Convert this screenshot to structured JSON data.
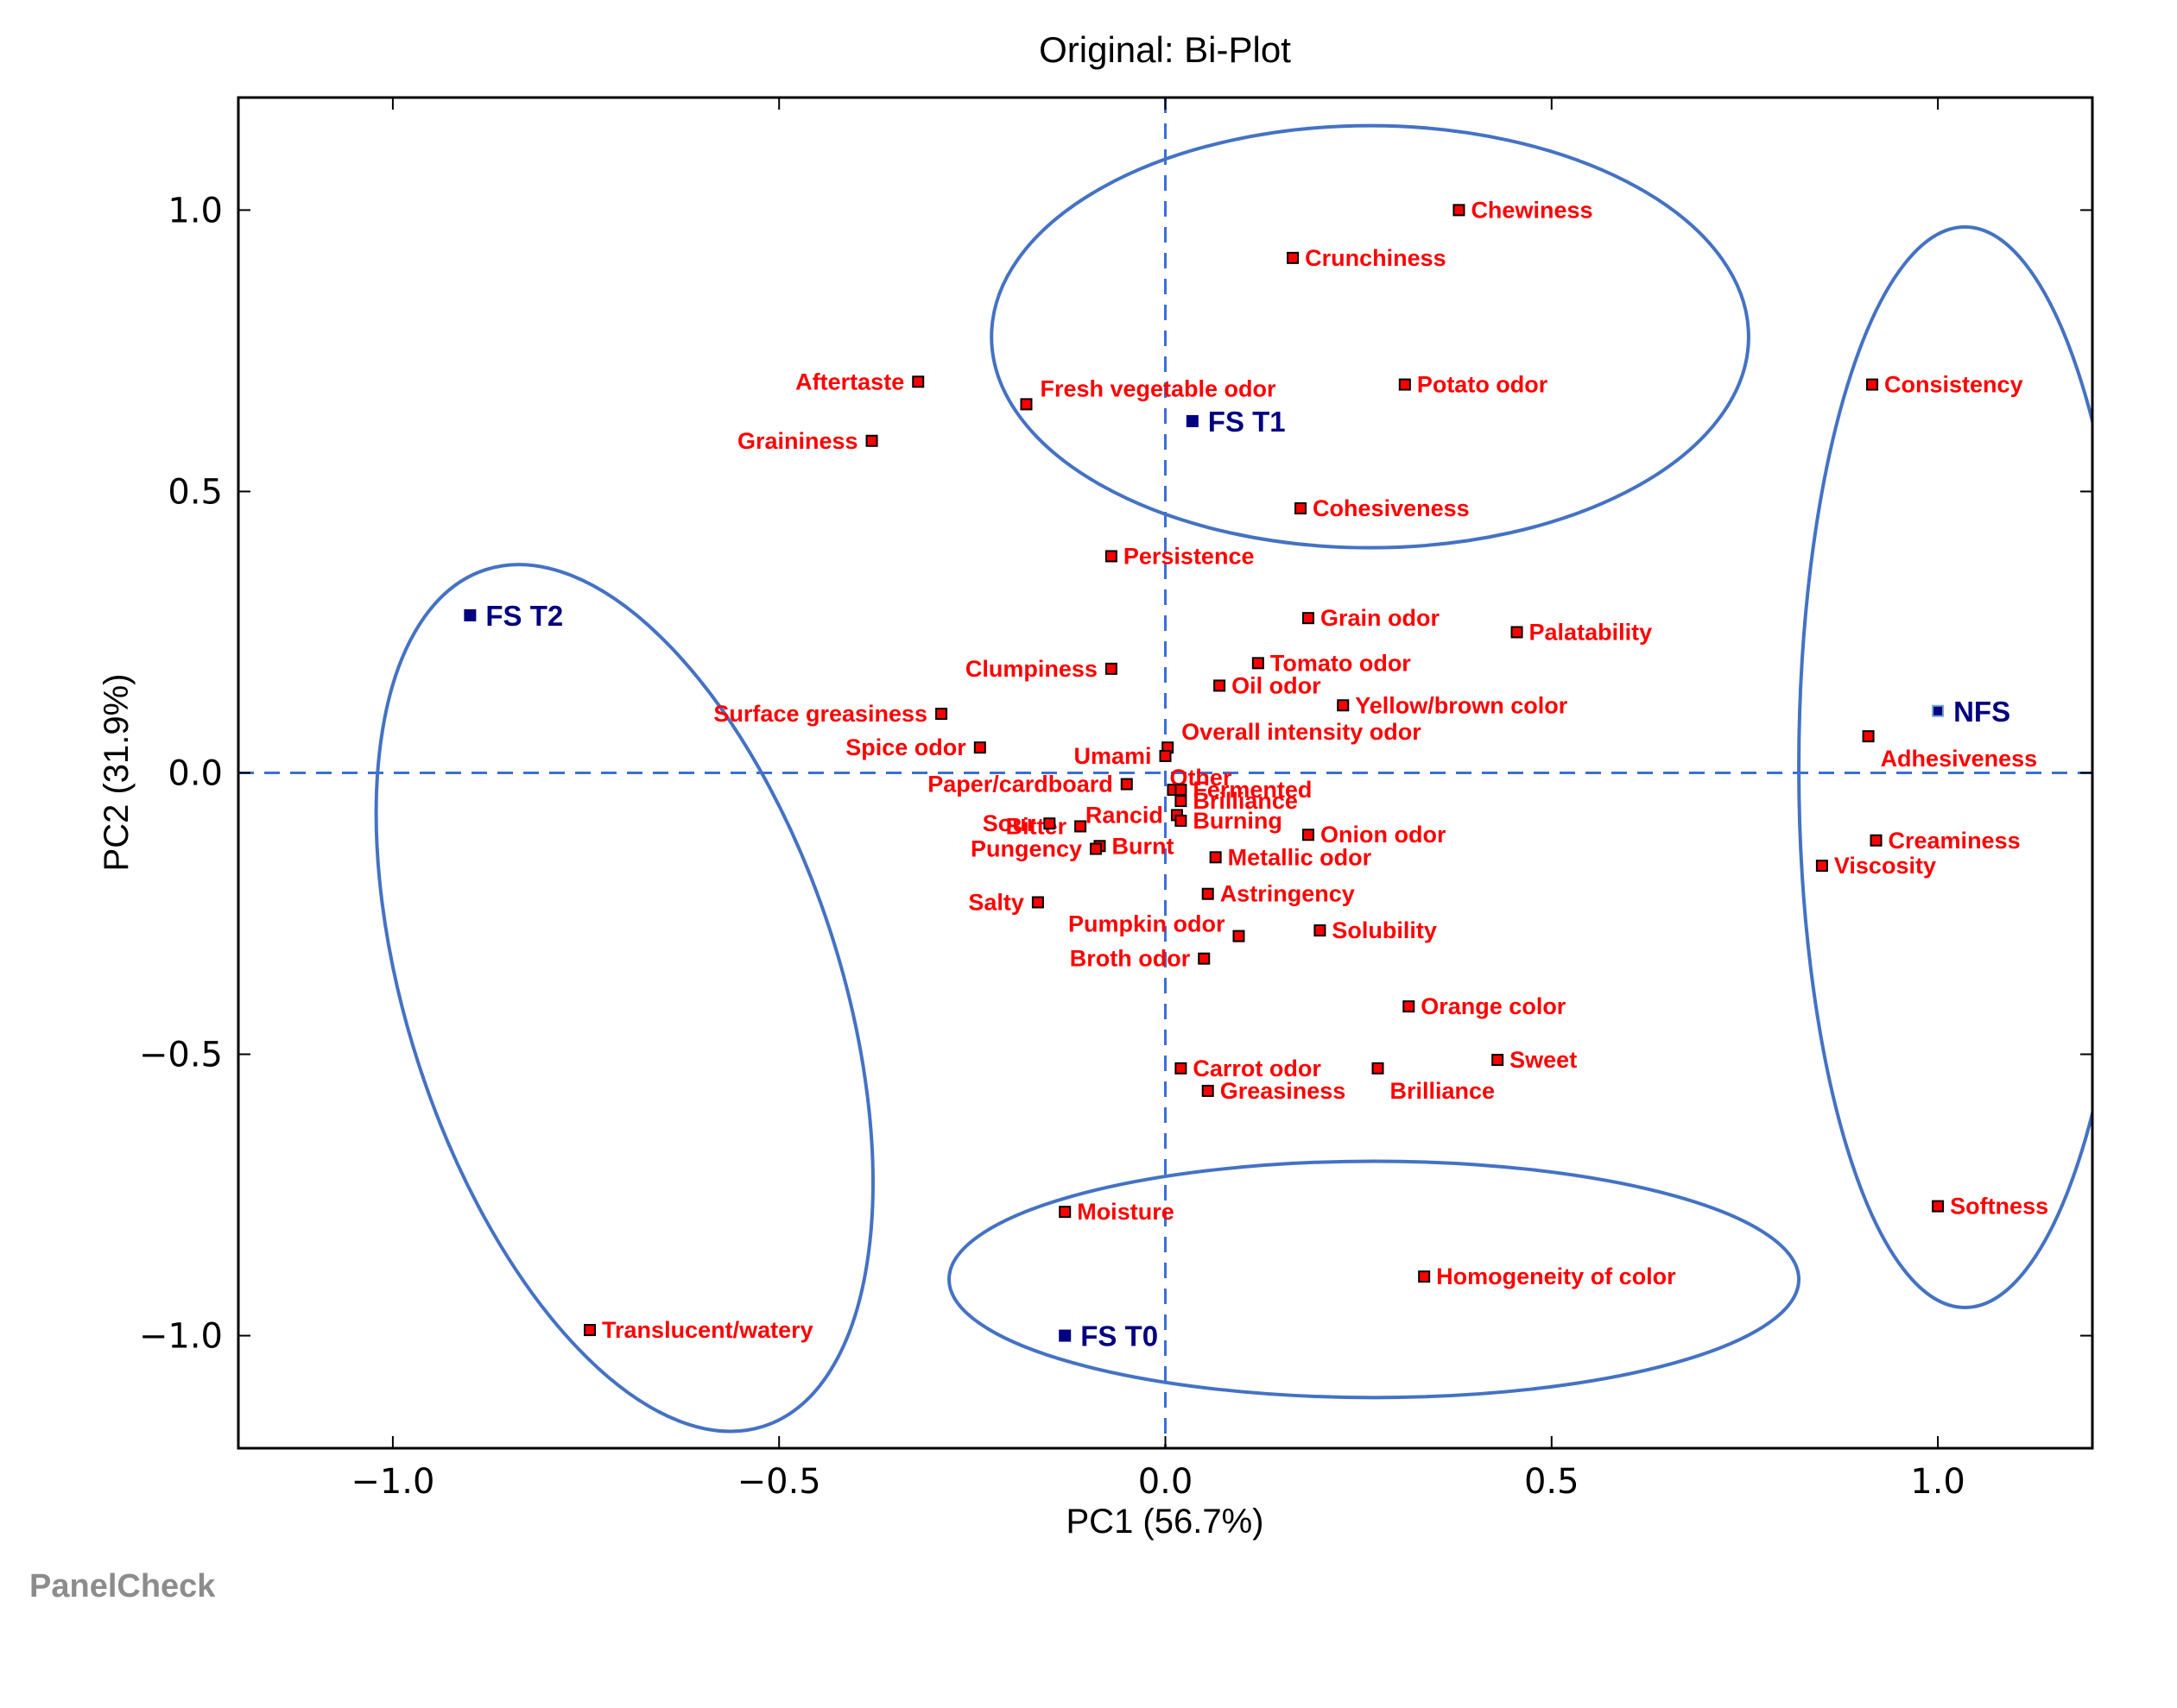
{
  "chart_data": {
    "type": "scatter",
    "title": "Original: Bi-Plot",
    "xlabel": "PC1 (56.7%)",
    "ylabel": "PC2 (31.9%)",
    "xlim": [
      -1.2,
      1.2
    ],
    "ylim": [
      -1.2,
      1.2
    ],
    "xticks": [
      -1.0,
      -0.5,
      0.0,
      0.5,
      1.0
    ],
    "xtick_labels": [
      "−1.0",
      "−0.5",
      "0.0",
      "0.5",
      "1.0"
    ],
    "yticks": [
      1.0,
      0.5,
      0.0,
      -0.5,
      -1.0
    ],
    "ytick_labels": [
      "1.0",
      "0.5",
      "0.0",
      "−0.5",
      "−1.0"
    ],
    "grid": false,
    "reference_lines": {
      "x": 0,
      "y": 0,
      "style": "dashed",
      "color": "#3a6fd6"
    },
    "attribute_color": "#ff0000",
    "sample_color": "#000080",
    "attributes": [
      {
        "label": "Chewiness",
        "x": 0.38,
        "y": 1.0,
        "align": "right"
      },
      {
        "label": "Crunchiness",
        "x": 0.165,
        "y": 0.915,
        "align": "right"
      },
      {
        "label": "Potato odor",
        "x": 0.31,
        "y": 0.69,
        "align": "right"
      },
      {
        "label": "Fresh vegetable odor",
        "x": -0.18,
        "y": 0.655,
        "align": "right-up"
      },
      {
        "label": "Aftertaste",
        "x": -0.32,
        "y": 0.695,
        "align": "left"
      },
      {
        "label": "Graininess",
        "x": -0.38,
        "y": 0.59,
        "align": "left"
      },
      {
        "label": "Cohesiveness",
        "x": 0.175,
        "y": 0.47,
        "align": "right"
      },
      {
        "label": "Persistence",
        "x": -0.07,
        "y": 0.385,
        "align": "right"
      },
      {
        "label": "Grain odor",
        "x": 0.185,
        "y": 0.275,
        "align": "right"
      },
      {
        "label": "Palatability",
        "x": 0.455,
        "y": 0.25,
        "align": "right"
      },
      {
        "label": "Tomato odor",
        "x": 0.12,
        "y": 0.195,
        "align": "right"
      },
      {
        "label": "Clumpiness",
        "x": -0.07,
        "y": 0.185,
        "align": "left"
      },
      {
        "label": "Oil odor",
        "x": 0.07,
        "y": 0.155,
        "align": "right"
      },
      {
        "label": "Yellow/brown color",
        "x": 0.23,
        "y": 0.12,
        "align": "right"
      },
      {
        "label": "Surface greasiness",
        "x": -0.29,
        "y": 0.105,
        "align": "left"
      },
      {
        "label": "Overall intensity odor",
        "x": 0.003,
        "y": 0.045,
        "align": "right-up"
      },
      {
        "label": "Spice odor",
        "x": -0.24,
        "y": 0.045,
        "align": "left"
      },
      {
        "label": "Umami",
        "x": 0.0,
        "y": 0.03,
        "align": "left"
      },
      {
        "label": "Other",
        "x": 0.01,
        "y": -0.03,
        "align": "up"
      },
      {
        "label": "Paper/cardboard",
        "x": -0.05,
        "y": -0.02,
        "align": "left"
      },
      {
        "label": "Fermented",
        "x": 0.02,
        "y": -0.03,
        "align": "right"
      },
      {
        "label": "Brilliance",
        "x": 0.02,
        "y": -0.05,
        "align": "right"
      },
      {
        "label": "Rancid",
        "x": 0.015,
        "y": -0.075,
        "align": "left"
      },
      {
        "label": "Bitter",
        "x": -0.11,
        "y": -0.095,
        "align": "left"
      },
      {
        "label": "Sour",
        "x": -0.15,
        "y": -0.09,
        "align": "left"
      },
      {
        "label": "Burning",
        "x": 0.02,
        "y": -0.085,
        "align": "right"
      },
      {
        "label": "Onion odor",
        "x": 0.185,
        "y": -0.11,
        "align": "right"
      },
      {
        "label": "Burnt",
        "x": -0.085,
        "y": -0.13,
        "align": "right"
      },
      {
        "label": "Pungency",
        "x": -0.09,
        "y": -0.135,
        "align": "left"
      },
      {
        "label": "Metallic odor",
        "x": 0.065,
        "y": -0.15,
        "align": "right"
      },
      {
        "label": "Astringency",
        "x": 0.055,
        "y": -0.215,
        "align": "right"
      },
      {
        "label": "Salty",
        "x": -0.165,
        "y": -0.23,
        "align": "left"
      },
      {
        "label": "Solubility",
        "x": 0.2,
        "y": -0.28,
        "align": "right"
      },
      {
        "label": "Pumpkin odor",
        "x": 0.095,
        "y": -0.29,
        "align": "left-up"
      },
      {
        "label": "Broth odor",
        "x": 0.05,
        "y": -0.33,
        "align": "left"
      },
      {
        "label": "Orange color",
        "x": 0.315,
        "y": -0.415,
        "align": "right"
      },
      {
        "label": "Sweet",
        "x": 0.43,
        "y": -0.51,
        "align": "right"
      },
      {
        "label": "Carrot odor",
        "x": 0.02,
        "y": -0.525,
        "align": "right"
      },
      {
        "label": "Brilliance",
        "x": 0.275,
        "y": -0.525,
        "align": "right-down"
      },
      {
        "label": "Greasiness",
        "x": 0.055,
        "y": -0.565,
        "align": "right"
      },
      {
        "label": "Moisture",
        "x": -0.13,
        "y": -0.78,
        "align": "right"
      },
      {
        "label": "Homogeneity of color",
        "x": 0.335,
        "y": -0.895,
        "align": "right"
      },
      {
        "label": "Translucent/watery",
        "x": -0.745,
        "y": -0.99,
        "align": "right"
      },
      {
        "label": "Consistency",
        "x": 0.915,
        "y": 0.69,
        "align": "right"
      },
      {
        "label": "Adhesiveness",
        "x": 0.91,
        "y": 0.065,
        "align": "right-down"
      },
      {
        "label": "Creaminess",
        "x": 0.92,
        "y": -0.12,
        "align": "right"
      },
      {
        "label": "Viscosity",
        "x": 0.85,
        "y": -0.165,
        "align": "right"
      },
      {
        "label": "Softness",
        "x": 1.0,
        "y": -0.77,
        "align": "right"
      }
    ],
    "samples": [
      {
        "label": "FS T1",
        "x": 0.035,
        "y": 0.625
      },
      {
        "label": "FS T2",
        "x": -0.9,
        "y": 0.28
      },
      {
        "label": "NFS",
        "x": 1.0,
        "y": 0.11
      },
      {
        "label": "FS T0",
        "x": -0.13,
        "y": -1.0
      }
    ],
    "clusters": [
      {
        "name": "top-cluster",
        "cx": 0.265,
        "cy": 0.775,
        "rx": 0.49,
        "ry": 0.375,
        "angle": 0
      },
      {
        "name": "left-cluster",
        "cx": -0.7,
        "cy": -0.4,
        "rx": 0.28,
        "ry": 0.8,
        "angle": -18
      },
      {
        "name": "right-cluster",
        "cx": 1.035,
        "cy": 0.01,
        "rx": 0.215,
        "ry": 0.96,
        "angle": 0
      },
      {
        "name": "bottom-cluster",
        "cx": 0.27,
        "cy": -0.9,
        "rx": 0.55,
        "ry": 0.21,
        "angle": 0
      }
    ],
    "cluster_color": "#4472c4"
  },
  "watermark": "PanelCheck"
}
